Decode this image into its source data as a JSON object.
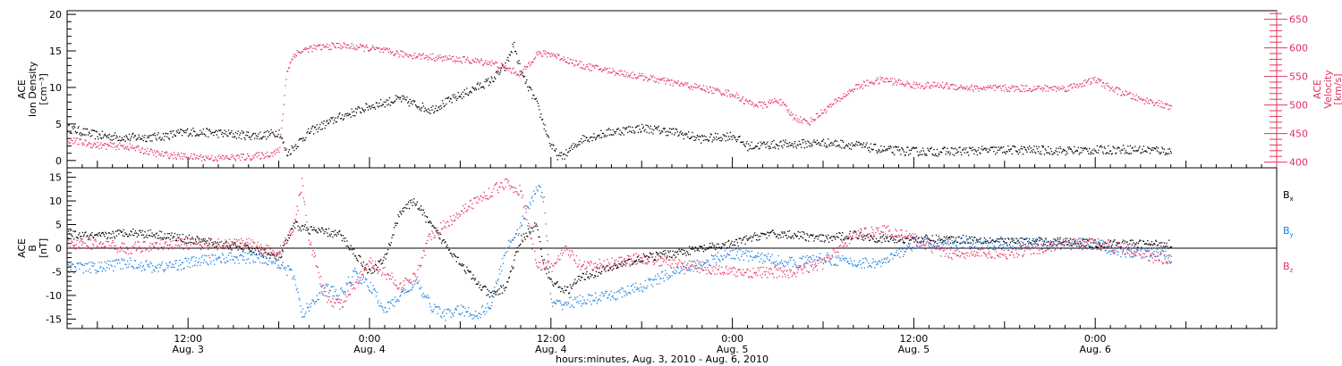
{
  "colors": {
    "black": "#000000",
    "pink": "#e6355f",
    "blue": "#1a7fe0"
  },
  "xlabel": "hours:minutes, Aug.  3, 2010 - Aug.  6, 2010",
  "time_ticks": [
    {
      "time": "12:00",
      "date": "Aug. 3",
      "hour": 12
    },
    {
      "time": "0:00",
      "date": "Aug. 4",
      "hour": 24
    },
    {
      "time": "12:00",
      "date": "Aug. 4",
      "hour": 36
    },
    {
      "time": "0:00",
      "date": "Aug. 5",
      "hour": 48
    },
    {
      "time": "12:00",
      "date": "Aug. 5",
      "hour": 60
    },
    {
      "time": "0:00",
      "date": "Aug. 6",
      "hour": 72
    }
  ],
  "chart_data": [
    {
      "type": "scatter",
      "panel": "top",
      "xlim": [
        4,
        84
      ],
      "ylabel_left": [
        "ACE",
        "Ion Density",
        "[cm⁻³]"
      ],
      "ylabel_right": [
        "ACE",
        "Velocity",
        "[km/s]"
      ],
      "ylim_left": [
        -1,
        20.5
      ],
      "ylim_right": [
        390,
        665
      ],
      "yticks_left": [
        0,
        5,
        10,
        15,
        20
      ],
      "yticks_right": [
        400,
        450,
        500,
        550,
        600,
        650
      ],
      "series": [
        {
          "color": "black",
          "axis": "left",
          "x": [
            4,
            6,
            8,
            10,
            12,
            14,
            16,
            17,
            18,
            18.5,
            19,
            20,
            22,
            24,
            26,
            28,
            30,
            32,
            33,
            33.5,
            34,
            35,
            36,
            36.5,
            37,
            38,
            40,
            42,
            44,
            46,
            48,
            49,
            50,
            52,
            54,
            56,
            58,
            60,
            62,
            64,
            66,
            68,
            70,
            72,
            74,
            76,
            77
          ],
          "y": [
            4.5,
            3.5,
            3.2,
            3.3,
            4,
            3.8,
            3.5,
            3.5,
            4,
            1,
            2,
            4,
            6,
            7.5,
            8.5,
            7,
            9,
            11,
            13,
            16,
            12,
            8,
            2,
            0.5,
            1,
            3,
            4,
            4.5,
            4,
            3,
            3.5,
            2,
            2.2,
            2.3,
            2.5,
            2.2,
            1.5,
            1.3,
            1.3,
            1.4,
            1.5,
            1.5,
            1.4,
            1.5,
            1.6,
            1.5,
            1.3
          ]
        },
        {
          "color": "pink",
          "axis": "right",
          "x": [
            4,
            6,
            8,
            10,
            12,
            14,
            16,
            17,
            18,
            18.5,
            19,
            20,
            22,
            24,
            26,
            28,
            30,
            32,
            33,
            34,
            35,
            36,
            37,
            38,
            40,
            42,
            44,
            46,
            48,
            49,
            50,
            51,
            52,
            53,
            54,
            55,
            56,
            57,
            58,
            59,
            60,
            62,
            64,
            66,
            68,
            70,
            72,
            73,
            74,
            75,
            76,
            77
          ],
          "y": [
            440,
            430,
            428,
            415,
            410,
            408,
            410,
            413,
            420,
            560,
            590,
            600,
            605,
            600,
            590,
            585,
            580,
            575,
            565,
            555,
            590,
            590,
            580,
            570,
            560,
            550,
            540,
            530,
            520,
            505,
            500,
            510,
            480,
            470,
            490,
            510,
            530,
            540,
            545,
            540,
            535,
            535,
            530,
            530,
            530,
            530,
            545,
            530,
            520,
            510,
            505,
            495
          ]
        }
      ]
    },
    {
      "type": "scatter",
      "panel": "bottom",
      "xlim": [
        4,
        84
      ],
      "ylabel_left": [
        "ACE",
        "B",
        "[nT]"
      ],
      "ylim": [
        -17,
        17
      ],
      "yticks": [
        -15,
        -10,
        -5,
        0,
        5,
        10,
        15
      ],
      "legend": [
        {
          "label": "B",
          "sub": "x",
          "color": "black"
        },
        {
          "label": "B",
          "sub": "y",
          "color": "blue"
        },
        {
          "label": "B",
          "sub": "z",
          "color": "pink"
        }
      ],
      "series": [
        {
          "color": "black",
          "x": [
            4,
            6,
            8,
            10,
            12,
            14,
            16,
            17,
            18,
            19,
            20,
            22,
            24,
            25,
            26,
            27,
            28,
            30,
            31,
            32,
            33,
            34,
            35,
            35.5,
            36,
            37,
            38,
            40,
            42,
            44,
            46,
            48,
            50,
            52,
            54,
            56,
            58,
            60,
            62,
            64,
            66,
            68,
            70,
            72,
            74,
            76,
            77
          ],
          "y": [
            3,
            2.5,
            3.5,
            3,
            2,
            1,
            0,
            -1,
            -2,
            5,
            4,
            3,
            -5,
            -2,
            8,
            10,
            5,
            -3,
            -7,
            -10,
            -8,
            2,
            5,
            -3,
            -7,
            -9,
            -6,
            -4,
            -2,
            -1,
            0,
            1,
            3,
            3,
            2,
            3,
            2,
            2,
            2,
            2,
            1.5,
            1.5,
            1.5,
            1,
            1,
            1,
            1
          ]
        },
        {
          "color": "blue",
          "x": [
            4,
            6,
            8,
            10,
            12,
            14,
            16,
            17,
            18,
            19,
            19.5,
            20,
            21,
            22,
            23,
            24,
            25,
            26,
            27,
            28,
            29,
            30,
            31,
            32,
            33,
            34,
            35,
            35.5,
            36,
            38,
            40,
            42,
            44,
            46,
            48,
            50,
            52,
            54,
            56,
            58,
            60,
            62,
            64,
            66,
            68,
            70,
            72,
            74,
            76,
            77
          ],
          "y": [
            -4,
            -4,
            -3,
            -4,
            -3,
            -2,
            -2,
            -2,
            -3,
            -6,
            -14,
            -12,
            -8,
            -10,
            -5,
            -8,
            -13,
            -10,
            -7,
            -12,
            -14,
            -13,
            -14,
            -12,
            0,
            5,
            13,
            11,
            -12,
            -11,
            -10,
            -8,
            -5,
            -3,
            -1,
            -2,
            -3,
            -2,
            -3,
            -3,
            1,
            1,
            1,
            1,
            1,
            1,
            1,
            -1,
            -1,
            -2
          ]
        },
        {
          "color": "pink",
          "x": [
            4,
            6,
            8,
            10,
            12,
            14,
            16,
            17,
            18,
            19,
            19.5,
            20,
            21,
            22,
            23,
            24,
            25,
            26,
            27,
            28,
            29,
            30,
            31,
            32,
            33,
            34,
            35,
            36,
            37,
            38,
            40,
            42,
            44,
            46,
            48,
            50,
            52,
            54,
            56,
            58,
            60,
            62,
            64,
            66,
            68,
            70,
            72,
            74,
            76,
            77
          ],
          "y": [
            1,
            1,
            0,
            1,
            1,
            1,
            1,
            0,
            -1,
            5,
            14,
            2,
            -10,
            -12,
            -8,
            -3,
            -5,
            -8,
            -6,
            3,
            5,
            8,
            10,
            12,
            14,
            12,
            -3,
            -4,
            0,
            -4,
            -3,
            -2,
            -3,
            -4,
            -5,
            -5,
            -5,
            -3,
            3,
            4,
            2,
            -1,
            -1,
            -1,
            0,
            1,
            1,
            0,
            -2,
            -2
          ]
        }
      ]
    }
  ]
}
